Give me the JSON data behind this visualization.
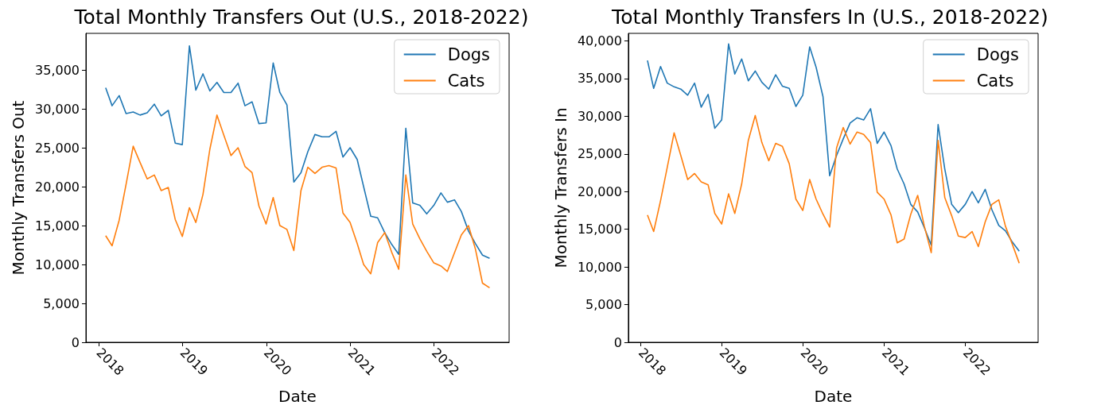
{
  "chart_data": [
    {
      "type": "line",
      "title": "Total Monthly Transfers Out (U.S., 2018-2022)",
      "xlabel": "Date",
      "ylabel": "Monthly Transfers Out",
      "x": [
        "2018-01-31",
        "2018-02-28",
        "2018-03-31",
        "2018-04-30",
        "2018-05-31",
        "2018-06-30",
        "2018-07-31",
        "2018-08-31",
        "2018-09-30",
        "2018-10-31",
        "2018-11-30",
        "2018-12-31",
        "2019-01-31",
        "2019-02-28",
        "2019-03-31",
        "2019-04-30",
        "2019-05-31",
        "2019-06-30",
        "2019-07-31",
        "2019-08-31",
        "2019-09-30",
        "2019-10-31",
        "2019-11-30",
        "2019-12-31",
        "2020-01-31",
        "2020-02-29",
        "2020-03-31",
        "2020-04-30",
        "2020-05-31",
        "2020-06-30",
        "2020-07-31",
        "2020-08-31",
        "2020-09-30",
        "2020-10-31",
        "2020-11-30",
        "2020-12-31",
        "2021-01-31",
        "2021-02-28",
        "2021-03-31",
        "2021-04-30",
        "2021-05-31",
        "2021-06-30",
        "2021-07-31",
        "2021-08-31",
        "2021-09-30",
        "2021-10-31",
        "2021-11-30",
        "2021-12-31",
        "2022-01-31",
        "2022-02-28",
        "2022-03-31",
        "2022-04-30",
        "2022-05-31",
        "2022-06-30",
        "2022-07-31",
        "2022-08-31"
      ],
      "series": [
        {
          "name": "Dogs",
          "color": "#1f77b4",
          "values": [
            32700,
            30400,
            31700,
            29400,
            29600,
            29200,
            29500,
            30600,
            29100,
            29800,
            25600,
            25400,
            38100,
            32400,
            34500,
            32300,
            33400,
            32100,
            32100,
            33300,
            30400,
            30900,
            28100,
            28200,
            35900,
            32100,
            30500,
            20600,
            21800,
            24500,
            26700,
            26400,
            26400,
            27100,
            23800,
            25000,
            23500,
            20000,
            16200,
            16000,
            14100,
            12600,
            11300,
            27500,
            17900,
            17600,
            16500,
            17600,
            19200,
            18000,
            18300,
            16800,
            14300,
            12700,
            11200,
            10800
          ]
        },
        {
          "name": "Cats",
          "color": "#ff7f0e",
          "values": [
            13700,
            12400,
            15700,
            20300,
            25200,
            23100,
            21000,
            21500,
            19500,
            19900,
            15800,
            13600,
            17300,
            15400,
            19000,
            24800,
            29200,
            26600,
            24000,
            25000,
            22600,
            21800,
            17500,
            15200,
            18600,
            15000,
            14500,
            11800,
            19500,
            22500,
            21700,
            22500,
            22700,
            22400,
            16600,
            15400,
            12700,
            10000,
            8800,
            12800,
            14100,
            11600,
            9400,
            21500,
            15200,
            13300,
            11700,
            10200,
            9800,
            9100,
            11500,
            13800,
            15000,
            12000,
            7600,
            7000
          ]
        }
      ],
      "xlim": [
        "2017-11-06",
        "2022-11-24"
      ],
      "xticks": [
        "2018",
        "2019",
        "2020",
        "2021",
        "2022"
      ],
      "ylim": [
        0,
        39700
      ],
      "yticks": [
        0,
        {
          "value": 5000,
          "label": "5,000"
        },
        {
          "value": 10000,
          "label": "10,000"
        },
        {
          "value": 15000,
          "label": "15,000"
        },
        {
          "value": 20000,
          "label": "20,000"
        },
        {
          "value": 25000,
          "label": "25,000"
        },
        {
          "value": 30000,
          "label": "30,000"
        },
        {
          "value": 35000,
          "label": "35,000"
        }
      ],
      "grid": false,
      "legend": "top right",
      "marker": "none",
      "line_style": "solid"
    },
    {
      "type": "line",
      "title": "Total Monthly Transfers In (U.S., 2018-2022)",
      "xlabel": "Date",
      "ylabel": "Monthly Transfers In",
      "x": [
        "2018-01-31",
        "2018-02-28",
        "2018-03-31",
        "2018-04-30",
        "2018-05-31",
        "2018-06-30",
        "2018-07-31",
        "2018-08-31",
        "2018-09-30",
        "2018-10-31",
        "2018-11-30",
        "2018-12-31",
        "2019-01-31",
        "2019-02-28",
        "2019-03-31",
        "2019-04-30",
        "2019-05-31",
        "2019-06-30",
        "2019-07-31",
        "2019-08-31",
        "2019-09-30",
        "2019-10-31",
        "2019-11-30",
        "2019-12-31",
        "2020-01-31",
        "2020-02-29",
        "2020-03-31",
        "2020-04-30",
        "2020-05-31",
        "2020-06-30",
        "2020-07-31",
        "2020-08-31",
        "2020-09-30",
        "2020-10-31",
        "2020-11-30",
        "2020-12-31",
        "2021-01-31",
        "2021-02-28",
        "2021-03-31",
        "2021-04-30",
        "2021-05-31",
        "2021-06-30",
        "2021-07-31",
        "2021-08-31",
        "2021-09-30",
        "2021-10-31",
        "2021-11-30",
        "2021-12-31",
        "2022-01-31",
        "2022-02-28",
        "2022-03-31",
        "2022-04-30",
        "2022-05-31",
        "2022-06-30",
        "2022-07-31",
        "2022-08-31"
      ],
      "series": [
        {
          "name": "Dogs",
          "color": "#1f77b4",
          "values": [
            37400,
            33700,
            36600,
            34400,
            33900,
            33600,
            32800,
            34400,
            31200,
            32900,
            28400,
            29500,
            39600,
            35600,
            37600,
            34700,
            36000,
            34500,
            33600,
            35500,
            34000,
            33700,
            31300,
            32800,
            39200,
            36500,
            32600,
            22100,
            24800,
            27000,
            29100,
            29800,
            29500,
            31000,
            26400,
            27900,
            26100,
            23000,
            21000,
            18300,
            17300,
            15200,
            12900,
            28900,
            23000,
            18300,
            17200,
            18300,
            20000,
            18500,
            20300,
            17600,
            15500,
            14800,
            13300,
            12100
          ]
        },
        {
          "name": "Cats",
          "color": "#ff7f0e",
          "values": [
            16900,
            14700,
            18800,
            23200,
            27800,
            24800,
            21600,
            22400,
            21300,
            20900,
            17100,
            15700,
            19700,
            17100,
            21000,
            26800,
            30100,
            26500,
            24100,
            26400,
            26000,
            23700,
            19000,
            17500,
            21600,
            19000,
            17000,
            15300,
            25800,
            28500,
            26300,
            27900,
            27600,
            26500,
            19900,
            19000,
            16900,
            13200,
            13700,
            17000,
            19500,
            15400,
            11900,
            26800,
            19200,
            16800,
            14100,
            13900,
            14700,
            12700,
            16000,
            18300,
            18900,
            15400,
            13000,
            10500
          ]
        }
      ],
      "xlim": [
        "2017-11-06",
        "2022-11-24"
      ],
      "xticks": [
        "2018",
        "2019",
        "2020",
        "2021",
        "2022"
      ],
      "ylim": [
        0,
        41000
      ],
      "yticks": [
        0,
        {
          "value": 5000,
          "label": "5,000"
        },
        {
          "value": 10000,
          "label": "10,000"
        },
        {
          "value": 15000,
          "label": "15,000"
        },
        {
          "value": 20000,
          "label": "20,000"
        },
        {
          "value": 25000,
          "label": "25,000"
        },
        {
          "value": 30000,
          "label": "30,000"
        },
        {
          "value": 35000,
          "label": "35,000"
        },
        {
          "value": 40000,
          "label": "40,000"
        }
      ],
      "grid": false,
      "legend": "top right",
      "marker": "none",
      "line_style": "solid"
    }
  ]
}
